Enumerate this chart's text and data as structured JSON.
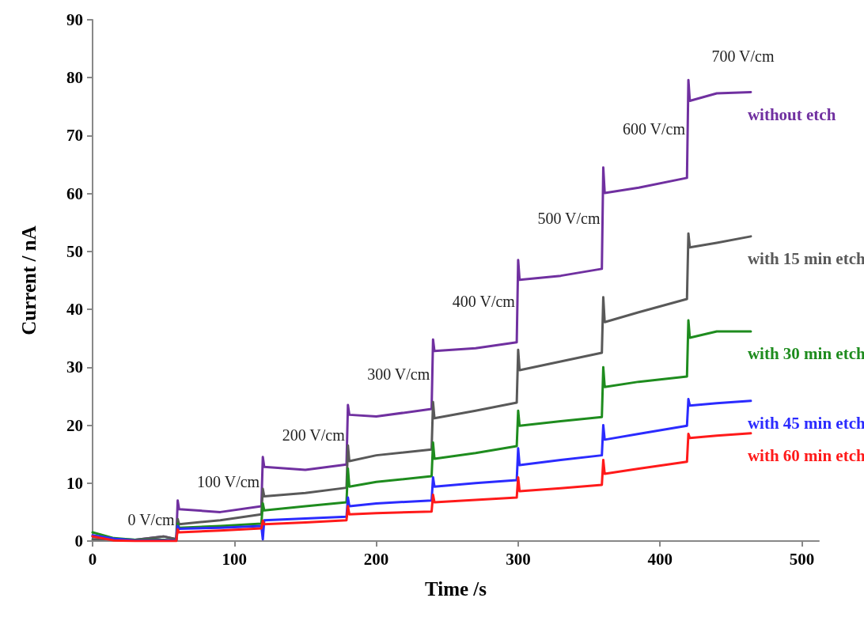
{
  "chart_data": {
    "type": "line",
    "xlabel": "Time /s",
    "ylabel": "Current / nA",
    "xlim": [
      0,
      512
    ],
    "xticks": [
      0,
      100,
      200,
      300,
      400,
      500
    ],
    "ylim": [
      0,
      90
    ],
    "yticks": [
      0,
      10,
      20,
      30,
      40,
      50,
      60,
      70,
      80,
      90
    ],
    "grid": false,
    "legend": false,
    "marker": "none",
    "line_style": "solid",
    "series": [
      {
        "name": "without etch",
        "color": "#7030a0",
        "x": [
          0,
          15,
          30,
          50,
          59,
          60,
          61,
          90,
          119,
          120,
          121,
          150,
          179,
          180,
          181,
          200,
          239,
          240,
          241,
          270,
          299,
          300,
          301,
          330,
          359,
          360,
          361,
          385,
          419,
          420,
          421,
          440,
          464
        ],
        "values": [
          0.8,
          0.3,
          0.2,
          0.8,
          0.3,
          7,
          5.5,
          5.0,
          6.0,
          14.5,
          12.8,
          12.3,
          13.2,
          23.5,
          21.8,
          21.5,
          22.8,
          34.8,
          32.8,
          33.3,
          34.3,
          48.5,
          45.1,
          45.8,
          47,
          64.5,
          60.1,
          61,
          62.7,
          79.6,
          76,
          77.3,
          77.5
        ]
      },
      {
        "name": "with 15 min etch",
        "color": "#595959",
        "x": [
          0,
          15,
          30,
          50,
          59,
          60,
          61,
          90,
          119,
          120,
          121,
          150,
          179,
          180,
          181,
          200,
          239,
          240,
          241,
          270,
          299,
          300,
          301,
          330,
          359,
          360,
          361,
          385,
          419,
          420,
          421,
          440,
          464
        ],
        "values": [
          0.3,
          0.3,
          0.2,
          0.8,
          0.3,
          3.8,
          2.9,
          3.6,
          4.6,
          9,
          7.7,
          8.3,
          9.2,
          16.5,
          13.8,
          14.8,
          15.8,
          24,
          21.2,
          22.5,
          23.9,
          33,
          29.5,
          31,
          32.5,
          42.1,
          37.8,
          39.5,
          41.8,
          53.1,
          50.7,
          51.5,
          52.6
        ]
      },
      {
        "name": "with 30 min etch",
        "color": "#1e8c1e",
        "x": [
          0,
          15,
          30,
          50,
          59,
          60,
          61,
          90,
          119,
          120,
          121,
          150,
          179,
          180,
          181,
          200,
          239,
          240,
          241,
          270,
          299,
          300,
          301,
          330,
          359,
          360,
          361,
          385,
          419,
          420,
          421,
          440,
          464
        ],
        "values": [
          1.5,
          0.5,
          0.2,
          0.2,
          0.1,
          3,
          2.3,
          2.6,
          3.0,
          6.5,
          5.3,
          6,
          6.7,
          12.5,
          9.4,
          10.2,
          11.2,
          17,
          14.2,
          15.2,
          16.4,
          22.5,
          19.9,
          20.7,
          21.4,
          30,
          26.6,
          27.5,
          28.4,
          38.1,
          35.1,
          36.2,
          36.2
        ]
      },
      {
        "name": "with 45 min etch",
        "color": "#2b2bff",
        "x": [
          0,
          15,
          30,
          50,
          59,
          60,
          61,
          90,
          119,
          120,
          121,
          150,
          179,
          180,
          181,
          200,
          239,
          240,
          241,
          270,
          299,
          300,
          301,
          330,
          359,
          360,
          361,
          385,
          419,
          420,
          421,
          440,
          464
        ],
        "values": [
          1,
          0.4,
          0.1,
          0.1,
          0.1,
          2.6,
          2.1,
          2.3,
          2.6,
          0.3,
          3.6,
          3.9,
          4.2,
          7.5,
          6.0,
          6.5,
          7.0,
          11,
          9.4,
          10,
          10.5,
          16,
          13.1,
          14,
          14.8,
          20,
          17.5,
          18.5,
          19.9,
          24.5,
          23.4,
          23.8,
          24.2
        ]
      },
      {
        "name": "with 60 min etch",
        "color": "#ff1a1a",
        "x": [
          0,
          15,
          30,
          50,
          59,
          60,
          61,
          90,
          119,
          120,
          121,
          150,
          179,
          180,
          181,
          200,
          239,
          240,
          241,
          270,
          299,
          300,
          301,
          330,
          359,
          360,
          361,
          385,
          419,
          420,
          421,
          440,
          464
        ],
        "values": [
          0.8,
          0.1,
          0,
          0,
          0,
          2,
          1.5,
          1.8,
          2.2,
          3.5,
          2.9,
          3.2,
          3.6,
          6,
          4.6,
          4.8,
          5.1,
          8,
          6.7,
          7.1,
          7.5,
          11,
          8.6,
          9.1,
          9.7,
          14,
          11.6,
          12.5,
          13.7,
          18.5,
          17.8,
          18.2,
          18.6
        ]
      }
    ],
    "annotations": [
      "0 V/cm",
      "100 V/cm",
      "200 V/cm",
      "300 V/cm",
      "400 V/cm",
      "500 V/cm",
      "600 V/cm",
      "700 V/cm"
    ]
  }
}
